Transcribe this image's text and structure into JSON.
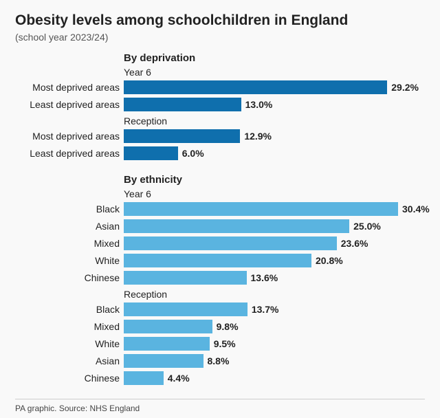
{
  "title": "Obesity levels among schoolchildren in England",
  "subtitle": "(school year 2023/24)",
  "chart_area_width": 420,
  "max_value": 32.0,
  "colors": {
    "deprivation_bar": "#0f6fad",
    "ethnicity_bar": "#5ab4e0",
    "text": "#222222",
    "background": "#f9f9f9"
  },
  "sections": [
    {
      "header": "By deprivation",
      "color_key": "deprivation_bar",
      "groups": [
        {
          "sub_header": "Year 6",
          "rows": [
            {
              "label": "Most deprived areas",
              "value": 29.2,
              "display": "29.2%"
            },
            {
              "label": "Least deprived areas",
              "value": 13.0,
              "display": "13.0%"
            }
          ]
        },
        {
          "sub_header": "Reception",
          "rows": [
            {
              "label": "Most deprived areas",
              "value": 12.9,
              "display": "12.9%"
            },
            {
              "label": "Least deprived areas",
              "value": 6.0,
              "display": "6.0%"
            }
          ]
        }
      ]
    },
    {
      "header": "By ethnicity",
      "color_key": "ethnicity_bar",
      "groups": [
        {
          "sub_header": "Year 6",
          "rows": [
            {
              "label": "Black",
              "value": 30.4,
              "display": "30.4%"
            },
            {
              "label": "Asian",
              "value": 25.0,
              "display": "25.0%"
            },
            {
              "label": "Mixed",
              "value": 23.6,
              "display": "23.6%"
            },
            {
              "label": "White",
              "value": 20.8,
              "display": "20.8%"
            },
            {
              "label": "Chinese",
              "value": 13.6,
              "display": "13.6%"
            }
          ]
        },
        {
          "sub_header": "Reception",
          "rows": [
            {
              "label": "Black",
              "value": 13.7,
              "display": "13.7%"
            },
            {
              "label": "Mixed",
              "value": 9.8,
              "display": "9.8%"
            },
            {
              "label": "White",
              "value": 9.5,
              "display": "9.5%"
            },
            {
              "label": "Asian",
              "value": 8.8,
              "display": "8.8%"
            },
            {
              "label": "Chinese",
              "value": 4.4,
              "display": "4.4%"
            }
          ]
        }
      ]
    }
  ],
  "footer": "PA graphic. Source: NHS England"
}
